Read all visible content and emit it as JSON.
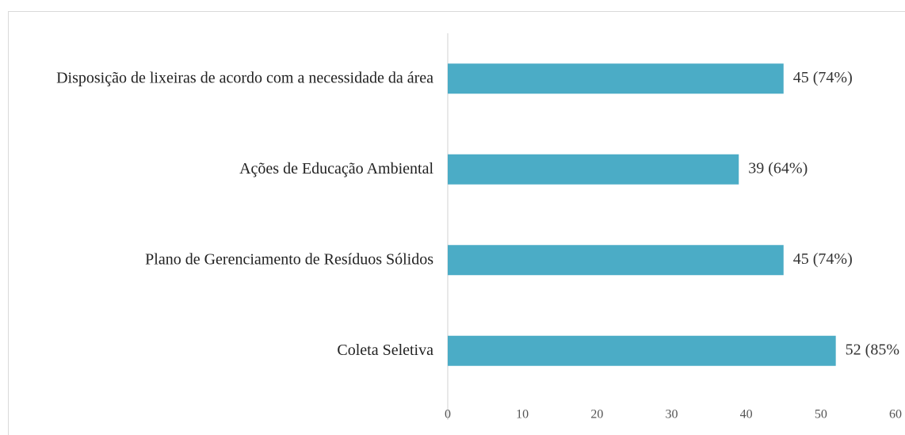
{
  "chart_data": {
    "type": "bar",
    "orientation": "horizontal",
    "categories": [
      "Disposição de lixeiras de acordo com a necessidade da área",
      "Ações de Educação Ambiental",
      "Plano de Gerenciamento de Resíduos Sólidos",
      "Coleta Seletiva"
    ],
    "values": [
      45,
      39,
      45,
      52
    ],
    "value_labels": [
      "45 (74%)",
      "39 (64%)",
      "45 (74%)",
      "52 (85%"
    ],
    "color": "#4bacc6",
    "xlim": [
      0,
      60
    ],
    "xticks": [
      0,
      10,
      20,
      30,
      40,
      50,
      60
    ],
    "grid": false
  }
}
